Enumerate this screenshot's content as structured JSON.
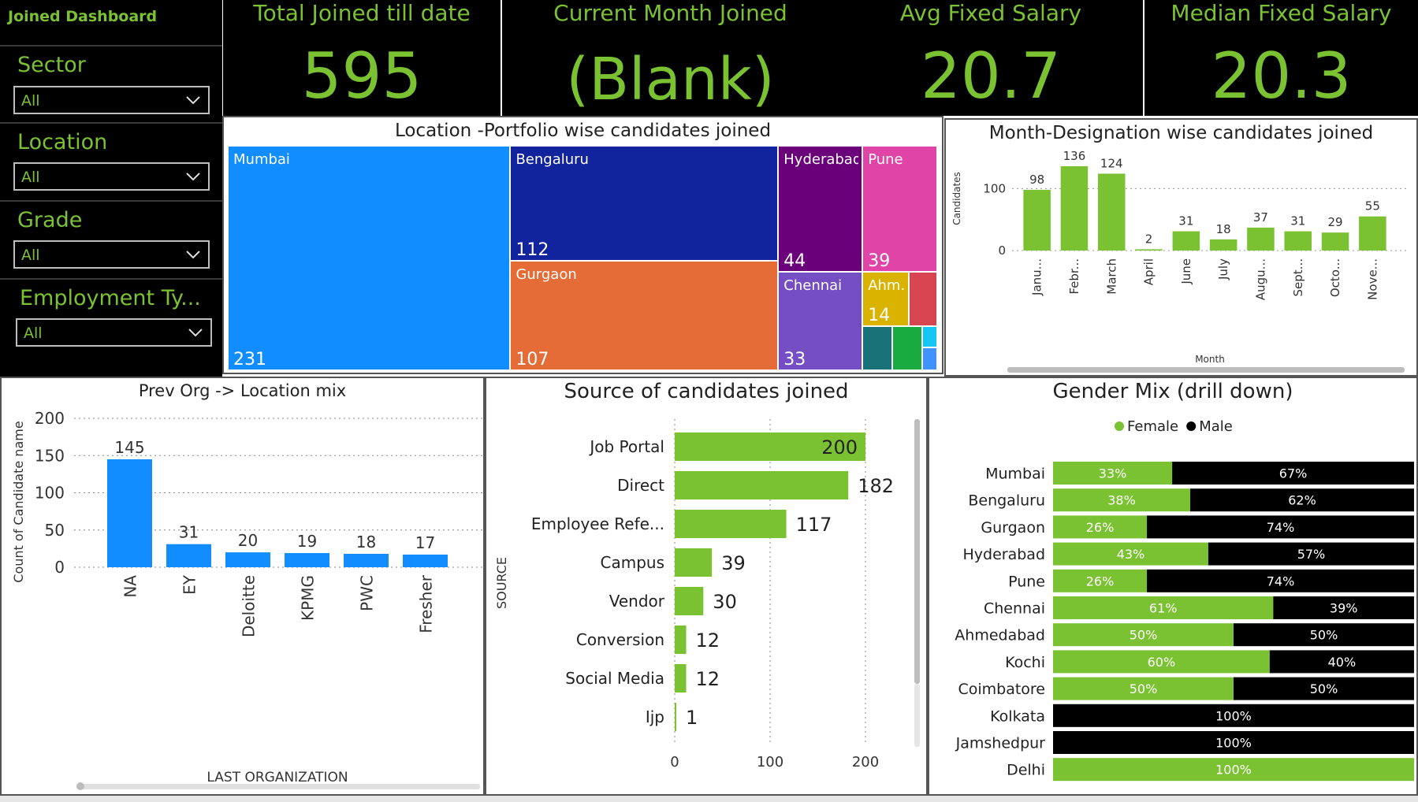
{
  "sidebar": {
    "title": "Joined Dashboard",
    "slicers": [
      {
        "label": "Sector",
        "value": "All"
      },
      {
        "label": "Location",
        "value": "All"
      },
      {
        "label": "Grade",
        "value": "All"
      },
      {
        "label": "Employment Ty...",
        "value": "All"
      }
    ]
  },
  "kpis": [
    {
      "label": "Total Joined till date",
      "value": "595"
    },
    {
      "label": "Current Month Joined",
      "value": "(Blank)"
    },
    {
      "label": "Avg Fixed Salary",
      "value": "20.7"
    },
    {
      "label": "Median Fixed Salary",
      "value": "20.3"
    }
  ],
  "colors": {
    "accent_green": "#7ac231",
    "bar_blue": "#118dff",
    "background_dark": "#000000",
    "male_black": "#000000"
  },
  "chart_data": [
    {
      "id": "treemap",
      "type": "treemap",
      "title": "Location -Portfolio wise candidates joined",
      "labels": [
        "Mumbai",
        "Bengaluru",
        "Gurgaon",
        "Hyderabad",
        "Pune",
        "Chennai",
        "Ahm..."
      ],
      "values": [
        231,
        112,
        107,
        44,
        39,
        33,
        14
      ],
      "colors": [
        "#118dff",
        "#12239e",
        "#e66c37",
        "#6b007b",
        "#e044a7",
        "#744ec2",
        "#d9b300"
      ],
      "small_tiles": [
        "#d64550",
        "#197278",
        "#1aab40",
        "#15c6f4",
        "#4092ff"
      ]
    },
    {
      "id": "month",
      "type": "bar",
      "title": "Month-Designation wise candidates joined",
      "categories": [
        "Janu...",
        "Febr...",
        "March",
        "April",
        "June",
        "July",
        "Augu...",
        "Sept...",
        "Octo...",
        "Nove..."
      ],
      "values": [
        98,
        136,
        124,
        2,
        31,
        18,
        37,
        31,
        29,
        55
      ],
      "xlabel": "Month",
      "ylabel": "Candidates",
      "ylim": [
        0,
        150
      ],
      "yticks": [
        0,
        100
      ],
      "grid": true
    },
    {
      "id": "prevorg",
      "type": "bar",
      "title": "Prev Org -> Location mix",
      "categories": [
        "NA",
        "EY",
        "Deloitte",
        "KPMG",
        "PWC",
        "Fresher"
      ],
      "values": [
        145,
        31,
        20,
        19,
        18,
        17
      ],
      "xlabel": "LAST ORGANIZATION",
      "ylabel": "Count of Candidate name",
      "ylim": [
        0,
        200
      ],
      "yticks": [
        0,
        50,
        100,
        150,
        200
      ],
      "grid": true
    },
    {
      "id": "source",
      "type": "bar",
      "orientation": "horizontal",
      "title": "Source of candidates joined",
      "categories": [
        "Job Portal",
        "Direct",
        "Employee Refe...",
        "Campus",
        "Vendor",
        "Conversion",
        "Social Media",
        "Ijp"
      ],
      "values": [
        200,
        182,
        117,
        39,
        30,
        12,
        12,
        1
      ],
      "ylabel": "SOURCE",
      "xlim": [
        0,
        200
      ],
      "xticks": [
        0,
        100,
        200
      ],
      "grid": true
    },
    {
      "id": "gender",
      "type": "bar",
      "orientation": "horizontal",
      "stacked": "100%",
      "title": "Gender Mix (drill down)",
      "legend": "top",
      "categories": [
        "Mumbai",
        "Bengaluru",
        "Gurgaon",
        "Hyderabad",
        "Pune",
        "Chennai",
        "Ahmedabad",
        "Kochi",
        "Coimbatore",
        "Kolkata",
        "Jamshedpur",
        "Delhi"
      ],
      "series": [
        {
          "name": "Female",
          "color": "#7ac231",
          "values": [
            33,
            38,
            26,
            43,
            26,
            61,
            50,
            60,
            50,
            0,
            0,
            100
          ]
        },
        {
          "name": "Male",
          "color": "#000000",
          "values": [
            67,
            62,
            74,
            57,
            74,
            39,
            50,
            40,
            50,
            100,
            100,
            0
          ]
        }
      ]
    }
  ]
}
